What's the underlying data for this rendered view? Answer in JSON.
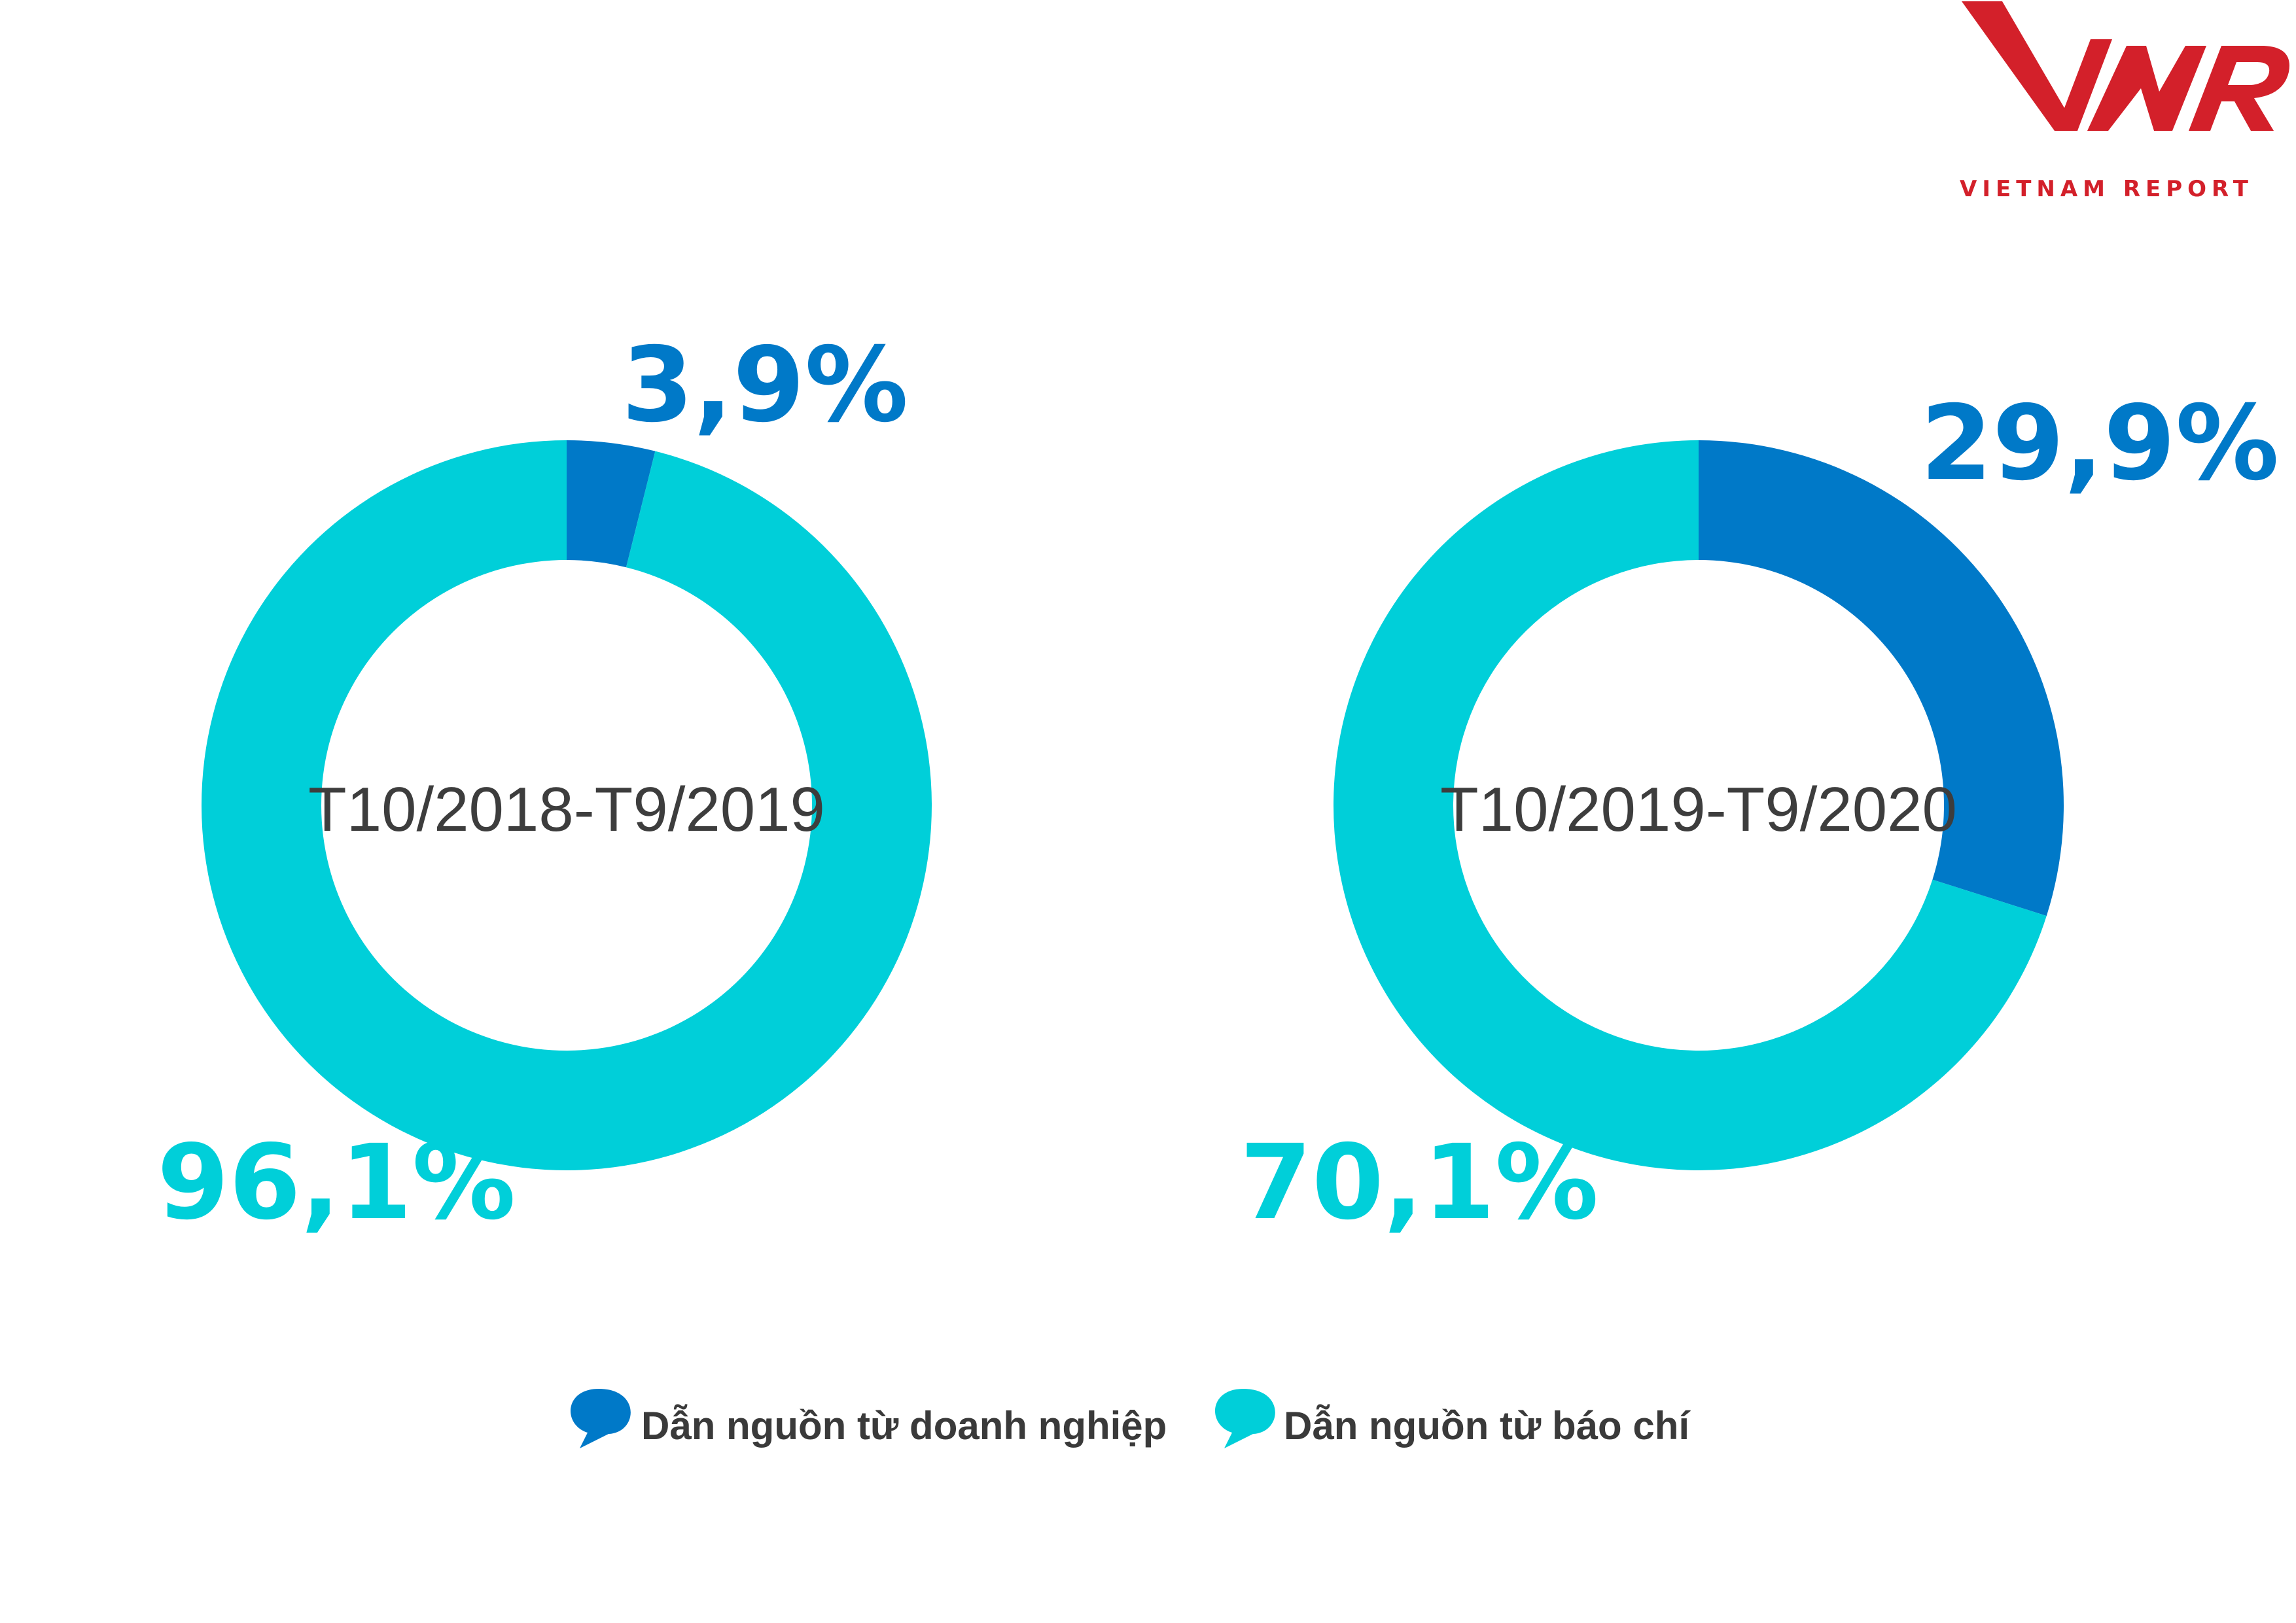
{
  "brand": {
    "logo_text": "VNR",
    "logo_subtitle": "VIETNAM REPORT",
    "logo_color": "#d3202a"
  },
  "colors": {
    "business": "#0079c8",
    "press": "#00cfd9",
    "label_text": "#3d3d3d"
  },
  "chart_data": [
    {
      "type": "pie",
      "donut": true,
      "center_label": "T10/2018-T9/2019",
      "slices": [
        {
          "name": "Dẫn nguồn từ doanh nghiệp",
          "value": 3.9,
          "label": "3,9%"
        },
        {
          "name": "Dẫn nguồn từ báo chí",
          "value": 96.1,
          "label": "96,1%"
        }
      ]
    },
    {
      "type": "pie",
      "donut": true,
      "center_label": "T10/2019-T9/2020",
      "slices": [
        {
          "name": "Dẫn nguồn từ doanh nghiệp",
          "value": 29.9,
          "label": "29,9%"
        },
        {
          "name": "Dẫn nguồn từ báo chí",
          "value": 70.1,
          "label": "70,1%"
        }
      ]
    }
  ],
  "legend": {
    "items": [
      {
        "label": "Dẫn nguồn từ doanh nghiệp",
        "color": "#0079c8"
      },
      {
        "label": "Dẫn nguồn từ báo chí",
        "color": "#00cfd9"
      }
    ]
  }
}
